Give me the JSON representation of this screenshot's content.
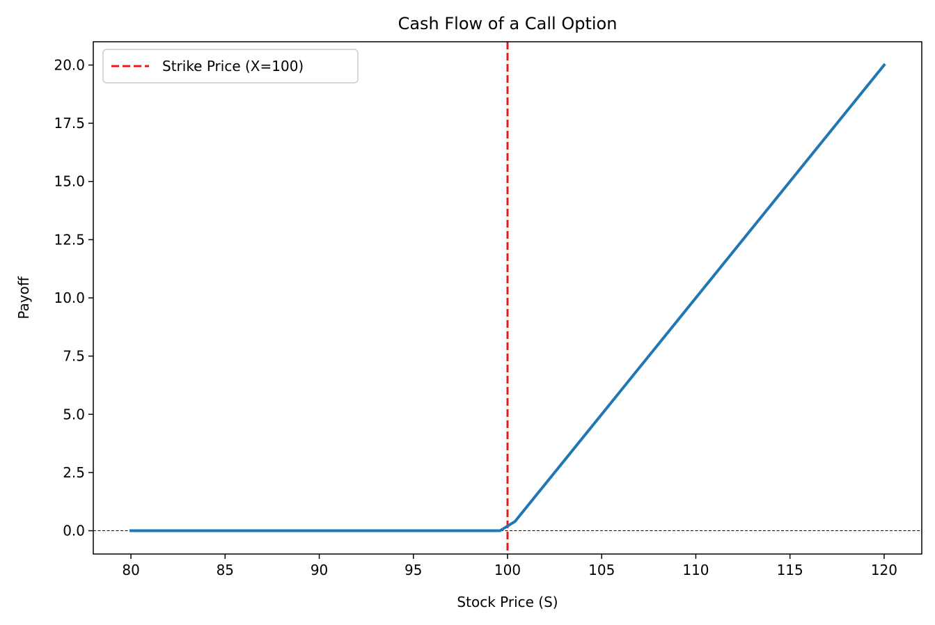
{
  "chart_data": {
    "type": "line",
    "title": "Cash Flow of a Call Option",
    "xlabel": "Stock Price (S)",
    "ylabel": "Payoff",
    "xlim": [
      78,
      122
    ],
    "ylim": [
      -1,
      21
    ],
    "xticks": [
      80,
      85,
      90,
      95,
      100,
      105,
      110,
      115,
      120
    ],
    "xtick_labels": [
      "80",
      "85",
      "90",
      "95",
      "100",
      "105",
      "110",
      "115",
      "120"
    ],
    "yticks": [
      0,
      2.5,
      5,
      7.5,
      10,
      12.5,
      15,
      17.5,
      20
    ],
    "ytick_labels": [
      "0.0",
      "2.5",
      "5.0",
      "7.5",
      "10.0",
      "12.5",
      "15.0",
      "17.5",
      "20.0"
    ],
    "grid": false,
    "legend_position": "upper-left",
    "series": [
      {
        "color": "#1f77b4",
        "style": "solid",
        "x": [
          80,
          99.6,
          100.4,
          120
        ],
        "y": [
          0,
          0,
          0.4,
          20
        ]
      }
    ],
    "vlines": [
      {
        "label": "Strike Price (X=100)",
        "x": 100,
        "color": "#e41a1c",
        "style": "dashed"
      }
    ],
    "hlines": [
      {
        "y": 0,
        "color": "#000000",
        "style": "dashed"
      }
    ]
  }
}
